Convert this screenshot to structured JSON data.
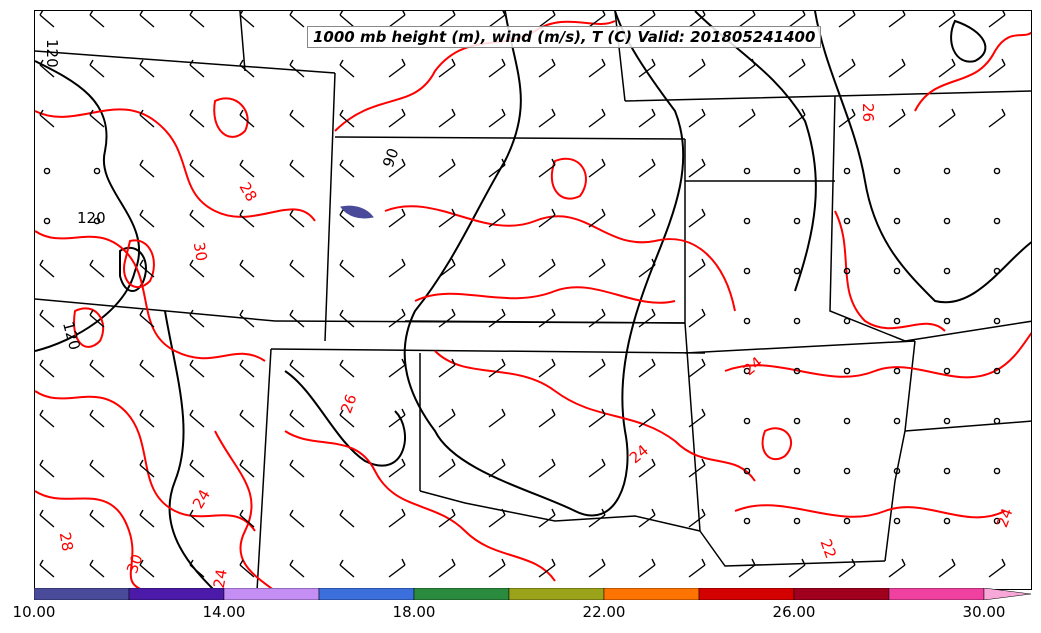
{
  "title": "1000 mb height (m), wind (m/s), T (C) Valid: 201805241400",
  "colorbar": {
    "colors": [
      "#4a4a9a",
      "#4b1aa8",
      "#c48ef5",
      "#3b6fdc",
      "#2a8a3e",
      "#9aa31a",
      "#ff7400",
      "#d40000",
      "#a0001e",
      "#f040a0",
      "#f7a8d8"
    ],
    "tick_labels": [
      "10.00",
      "14.00",
      "18.00",
      "22.00",
      "26.00",
      "30.00"
    ]
  },
  "contour_labels": {
    "height": [
      "120",
      "120",
      "120",
      "90"
    ],
    "temperature": [
      "28",
      "30",
      "26",
      "24",
      "24",
      "24",
      "26",
      "24",
      "22",
      "28",
      "30",
      "24"
    ]
  },
  "colors": {
    "height_contour": "#000000",
    "temp_contour": "#ff0000",
    "borders": "#000000"
  }
}
